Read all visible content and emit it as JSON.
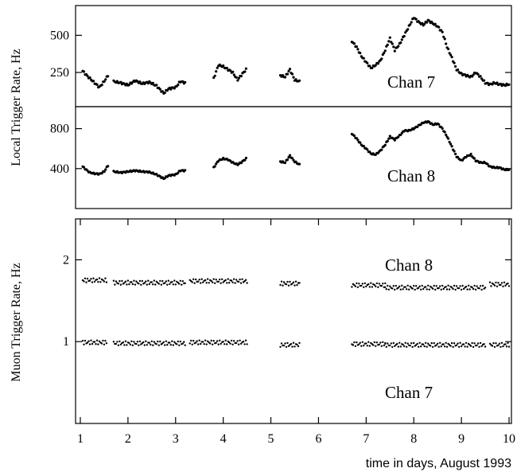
{
  "chart_data": [
    {
      "type": "scatter",
      "panel": "top",
      "annotation": "Chan 7",
      "ylabel": "Local Trigger Rate, Hz",
      "xlim": [
        0.9,
        10.05
      ],
      "ylim": [
        20,
        700
      ],
      "yticks": [
        250,
        500
      ],
      "grid": false,
      "segments": [
        {
          "x": [
            1.05,
            1.12,
            1.2,
            1.3,
            1.4,
            1.5,
            1.58
          ],
          "y": [
            260,
            235,
            210,
            180,
            150,
            190,
            230
          ]
        },
        {
          "x": [
            1.7,
            1.85,
            2.0,
            2.15,
            2.3,
            2.45,
            2.6,
            2.75,
            2.85,
            3.0,
            3.1,
            3.2
          ],
          "y": [
            190,
            180,
            165,
            195,
            175,
            185,
            160,
            110,
            140,
            150,
            190,
            180
          ]
        },
        {
          "x": [
            3.8,
            3.9,
            4.0,
            4.1,
            4.2,
            4.3,
            4.4,
            4.48
          ],
          "y": [
            210,
            300,
            290,
            270,
            250,
            200,
            240,
            270
          ]
        },
        {
          "x": [
            5.2,
            5.3,
            5.4,
            5.5,
            5.6
          ],
          "y": [
            230,
            220,
            270,
            200,
            190
          ]
        },
        {
          "x": [
            6.7,
            6.8,
            6.9,
            7.0,
            7.1,
            7.2,
            7.3,
            7.4,
            7.5,
            7.6,
            7.7,
            7.8,
            7.9,
            8.0,
            8.1,
            8.2,
            8.3,
            8.4,
            8.5,
            8.6,
            8.7,
            8.8,
            8.9,
            9.0,
            9.1,
            9.2,
            9.3,
            9.4,
            9.5,
            9.6,
            9.7,
            9.8,
            9.9,
            10.0
          ],
          "y": [
            460,
            420,
            360,
            320,
            280,
            300,
            330,
            400,
            480,
            400,
            440,
            500,
            560,
            620,
            590,
            570,
            600,
            580,
            560,
            520,
            420,
            350,
            270,
            240,
            230,
            220,
            250,
            220,
            180,
            170,
            180,
            170,
            165,
            170
          ]
        }
      ]
    },
    {
      "type": "scatter",
      "panel": "middle",
      "annotation": "Chan 8",
      "ylabel": "Local Trigger Rate, Hz",
      "xlim": [
        0.9,
        10.05
      ],
      "ylim": [
        0,
        1020
      ],
      "yticks": [
        400,
        800
      ],
      "grid": false,
      "segments": [
        {
          "x": [
            1.05,
            1.12,
            1.2,
            1.3,
            1.4,
            1.5,
            1.58
          ],
          "y": [
            420,
            390,
            360,
            350,
            345,
            370,
            430
          ]
        },
        {
          "x": [
            1.7,
            1.85,
            2.0,
            2.15,
            2.3,
            2.45,
            2.6,
            2.75,
            2.85,
            3.0,
            3.1,
            3.2
          ],
          "y": [
            370,
            360,
            370,
            380,
            370,
            365,
            340,
            300,
            330,
            340,
            380,
            380
          ]
        },
        {
          "x": [
            3.8,
            3.9,
            4.0,
            4.1,
            4.2,
            4.3,
            4.4,
            4.48
          ],
          "y": [
            410,
            480,
            500,
            490,
            460,
            440,
            470,
            500
          ]
        },
        {
          "x": [
            5.2,
            5.3,
            5.4,
            5.5,
            5.6
          ],
          "y": [
            470,
            460,
            530,
            470,
            440
          ]
        },
        {
          "x": [
            6.7,
            6.8,
            6.9,
            7.0,
            7.1,
            7.2,
            7.3,
            7.4,
            7.5,
            7.6,
            7.7,
            7.8,
            7.9,
            8.0,
            8.1,
            8.2,
            8.3,
            8.4,
            8.5,
            8.6,
            8.7,
            8.8,
            8.9,
            9.0,
            9.1,
            9.2,
            9.3,
            9.4,
            9.5,
            9.6,
            9.7,
            9.8,
            9.9,
            10.0
          ],
          "y": [
            750,
            700,
            640,
            600,
            550,
            540,
            580,
            640,
            720,
            690,
            730,
            780,
            780,
            800,
            830,
            860,
            870,
            840,
            850,
            800,
            720,
            620,
            520,
            480,
            520,
            540,
            480,
            460,
            460,
            420,
            410,
            410,
            390,
            390
          ]
        }
      ]
    },
    {
      "type": "scatter",
      "panel": "bottom",
      "annotations": [
        "Chan 8",
        "Chan 7"
      ],
      "ylabel": "Muon Trigger Rate, Hz",
      "xlabel": "time in days, August 1993",
      "xlim": [
        0.9,
        10.05
      ],
      "ylim": [
        0,
        2.5
      ],
      "yticks": [
        1,
        2
      ],
      "xticks": [
        1,
        2,
        3,
        4,
        5,
        6,
        7,
        8,
        9,
        10
      ],
      "grid": false,
      "series": [
        {
          "name": "Chan 8",
          "segments": [
            [
              1.05,
              1.55,
              1.75
            ],
            [
              1.7,
              3.2,
              1.72
            ],
            [
              3.3,
              4.5,
              1.74
            ],
            [
              5.2,
              5.6,
              1.71
            ],
            [
              6.7,
              7.4,
              1.69
            ],
            [
              7.4,
              9.5,
              1.66
            ],
            [
              9.6,
              10.0,
              1.7
            ]
          ]
        },
        {
          "name": "Chan 7",
          "segments": [
            [
              1.05,
              1.55,
              0.99
            ],
            [
              1.7,
              3.2,
              0.98
            ],
            [
              3.3,
              4.5,
              0.99
            ],
            [
              5.2,
              5.6,
              0.96
            ],
            [
              6.7,
              7.4,
              0.97
            ],
            [
              7.4,
              9.5,
              0.96
            ],
            [
              9.6,
              10.0,
              0.96
            ]
          ]
        }
      ]
    }
  ]
}
